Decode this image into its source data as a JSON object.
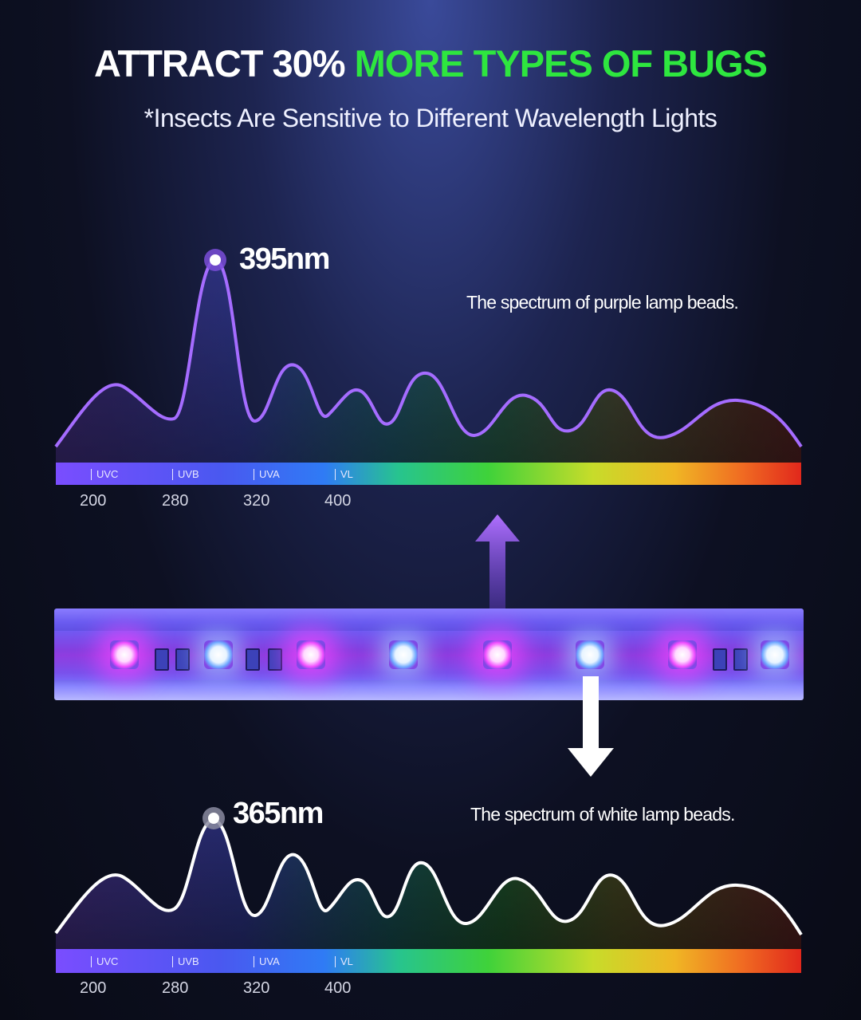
{
  "headline": {
    "part1": "ATTRACT 30% ",
    "part2": "MORE TYPES OF BUGS"
  },
  "subhead": "*Insects Are Sensitive to Different Wavelength Lights",
  "colors": {
    "accent_green": "#2ee63f",
    "purple_curve": "#a56cff",
    "white_curve": "#ffffff"
  },
  "top_chart": {
    "peak_label": "395nm",
    "caption": "The spectrum of purple lamp beads.",
    "bands": [
      "UVC",
      "UVB",
      "UVA",
      "VL"
    ],
    "ticks": [
      "200",
      "280",
      "320",
      "400"
    ]
  },
  "bottom_chart": {
    "peak_label": "365nm",
    "caption": "The spectrum of white lamp beads.",
    "bands": [
      "UVC",
      "UVB",
      "UVA",
      "VL"
    ],
    "ticks": [
      "200",
      "280",
      "320",
      "400"
    ]
  },
  "icons": {
    "up_arrow": "up-arrow-icon",
    "down_arrow": "down-arrow-icon"
  }
}
